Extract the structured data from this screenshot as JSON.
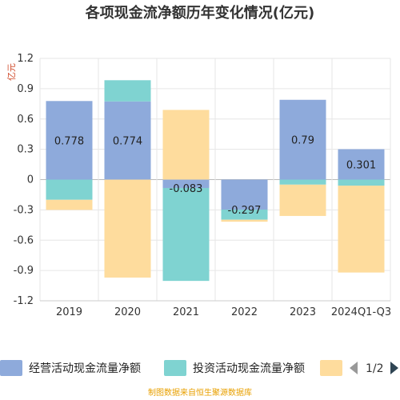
{
  "chart_data": {
    "type": "bar",
    "stacked": true,
    "title": "各项现金流净额历年变化情况(亿元)",
    "unit_label": "亿元",
    "categories": [
      "2019",
      "2020",
      "2021",
      "2022",
      "2023",
      "2024Q1-Q3"
    ],
    "series": [
      {
        "name": "经营活动现金流量净额",
        "color": "#8eaadb",
        "values": [
          0.778,
          0.774,
          -0.083,
          -0.297,
          0.79,
          0.301
        ],
        "labels": [
          "0.778",
          "0.774",
          "-0.083",
          "-0.297",
          "0.79",
          "0.301"
        ]
      },
      {
        "name": "投资活动现金流量净额",
        "color": "#7fd3d1",
        "values": [
          -0.2,
          0.21,
          -0.92,
          -0.1,
          -0.05,
          -0.06
        ]
      },
      {
        "name": "",
        "color": "#fedc9d",
        "values": [
          -0.1,
          -0.97,
          0.69,
          -0.02,
          -0.31,
          -0.86
        ]
      }
    ],
    "ylim": [
      -1.2,
      1.2
    ],
    "yticks": [
      1.2,
      0.9,
      0.6,
      0.3,
      0,
      -0.3,
      -0.6,
      -0.9,
      -1.2
    ],
    "ytick_labels": [
      "1.2",
      "0.9",
      "0.6",
      "0.3",
      "0",
      "-0.3",
      "-0.6",
      "-0.9",
      "-1.2"
    ],
    "grid": true,
    "legend_position": "bottom"
  },
  "legend": {
    "pager": "1/2"
  },
  "footer": {
    "source": "制图数据来自恒生聚源数据库"
  }
}
